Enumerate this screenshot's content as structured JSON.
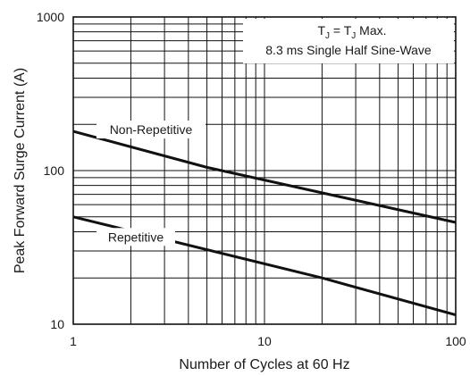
{
  "chart_data": {
    "type": "line",
    "x_scale": "log",
    "y_scale": "log",
    "xlim": [
      1,
      100
    ],
    "ylim": [
      10,
      1000
    ],
    "xlabel": "Number of Cycles at 60 Hz",
    "ylabel": "Peak Forward Surge Current (A)",
    "grid": true,
    "x_ticks": [
      "1",
      "10",
      "100"
    ],
    "y_ticks": [
      "10",
      "100",
      "1000"
    ],
    "legend": {
      "position": "top-right",
      "line1_prefix": "T",
      "line1_sub1": "J",
      "line1_mid": " = T",
      "line1_sub2": "J",
      "line1_suffix": " Max.",
      "line2": "8.3 ms Single Half Sine-Wave"
    },
    "series": [
      {
        "name": "Non-Repetitive",
        "x": [
          1,
          5,
          100
        ],
        "y": [
          180,
          105,
          46
        ]
      },
      {
        "name": "Repetitive",
        "x": [
          1,
          20,
          100
        ],
        "y": [
          50,
          20,
          11.5
        ]
      }
    ]
  }
}
